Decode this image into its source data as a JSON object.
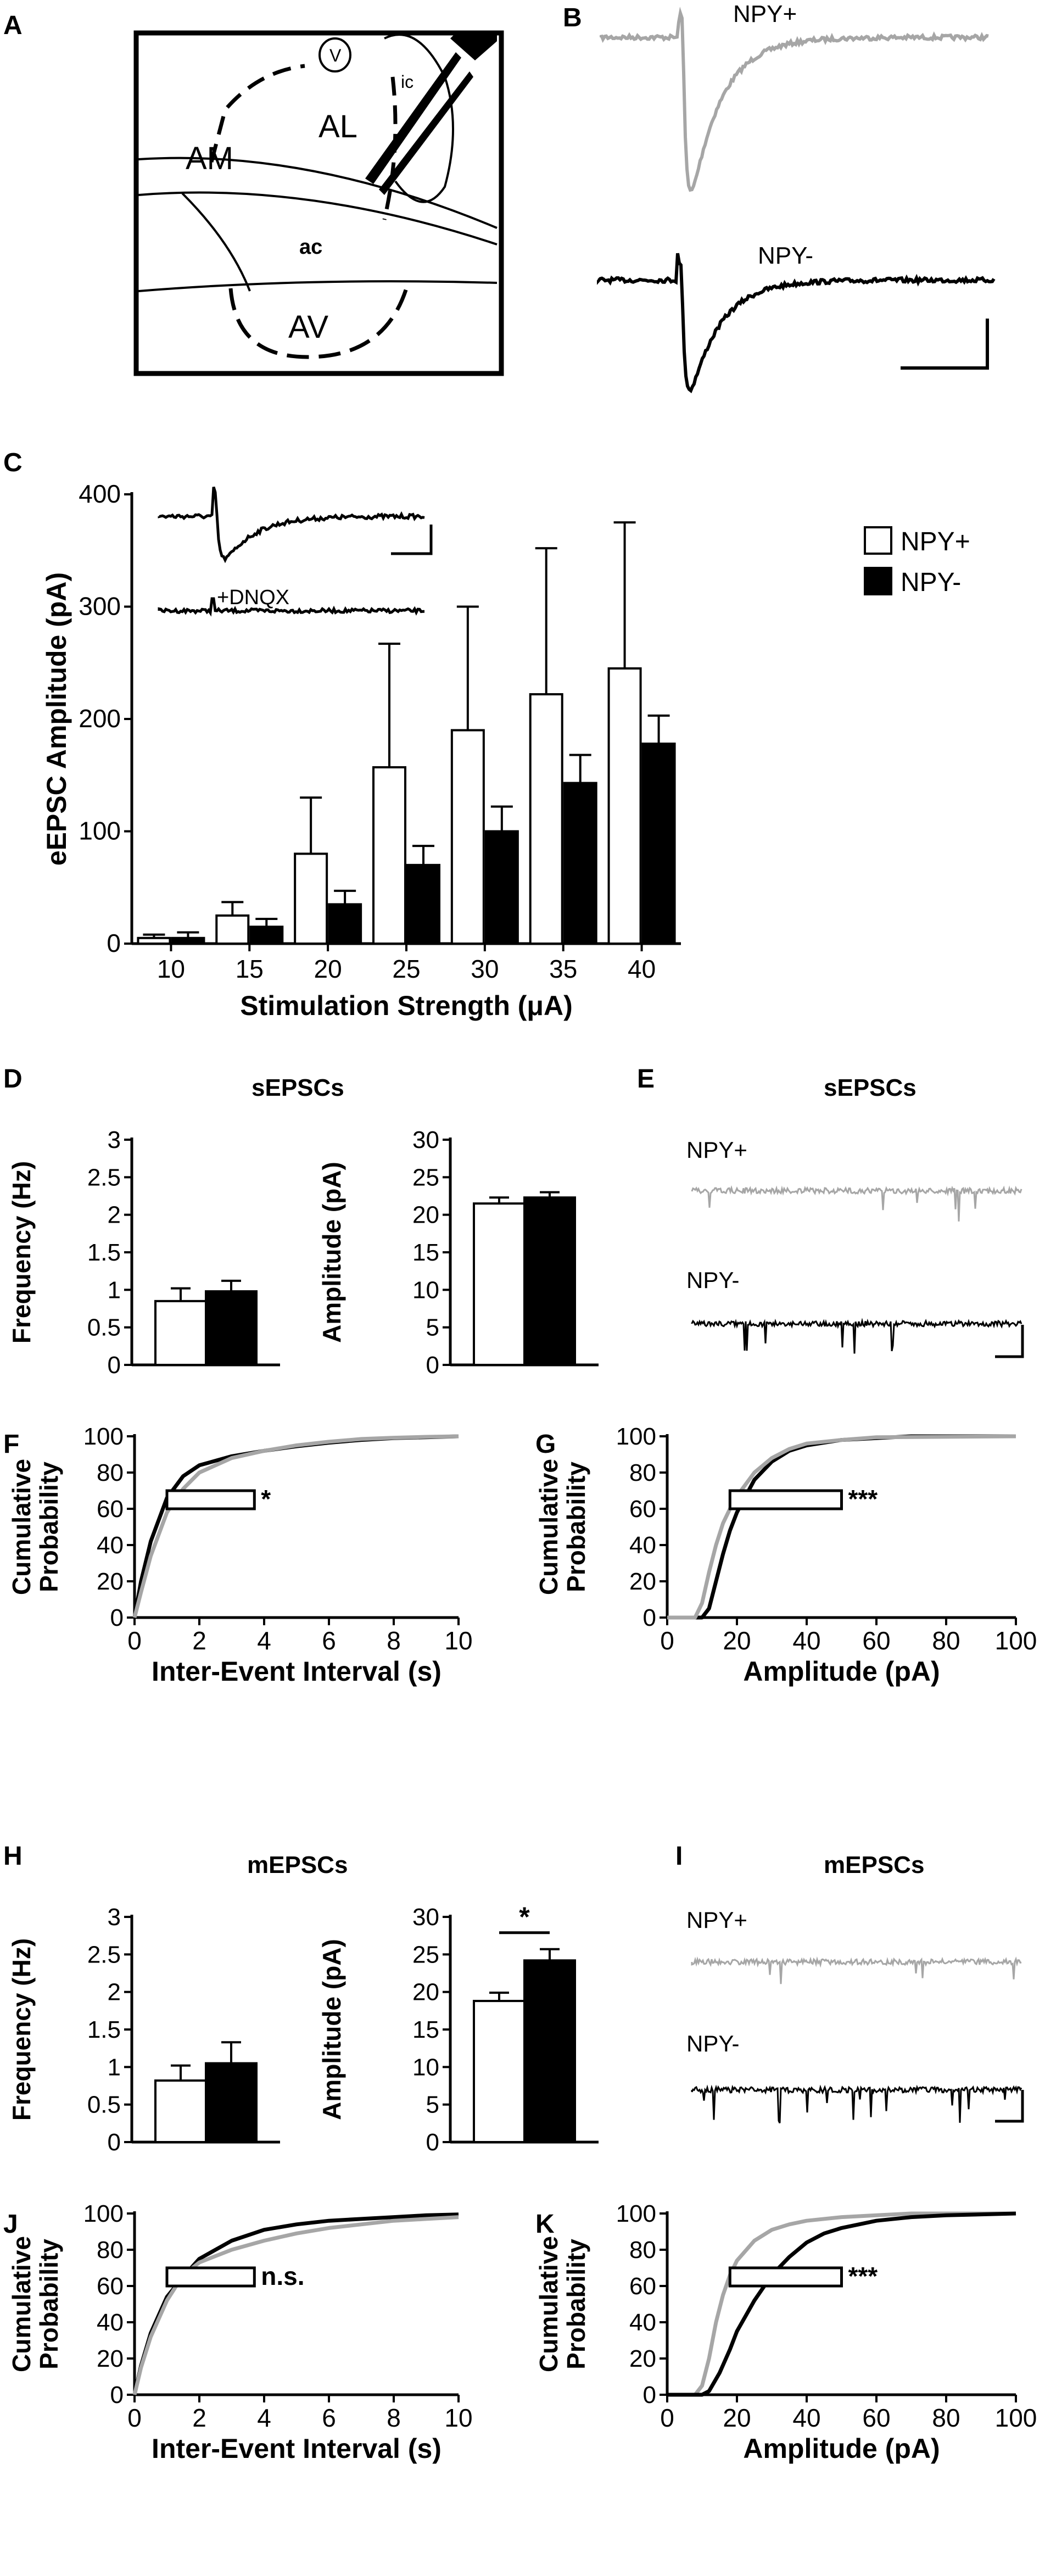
{
  "panels": {
    "A": {
      "letter": "A",
      "regions": [
        "V",
        "ic",
        "AL",
        "AM",
        "ac",
        "AV"
      ]
    },
    "B": {
      "letter": "B",
      "trace_labels": [
        "NPY+",
        "NPY-"
      ]
    },
    "C": {
      "letter": "C",
      "inset_label": "+DNQX"
    },
    "D": {
      "letter": "D",
      "title": "sEPSCs"
    },
    "E": {
      "letter": "E",
      "title": "sEPSCs",
      "trace_labels": [
        "NPY+",
        "NPY-"
      ]
    },
    "F": {
      "letter": "F"
    },
    "G": {
      "letter": "G"
    },
    "H": {
      "letter": "H",
      "title": "mEPSCs"
    },
    "I": {
      "letter": "I",
      "title": "mEPSCs",
      "trace_labels": [
        "NPY+",
        "NPY-"
      ]
    },
    "J": {
      "letter": "J"
    },
    "K": {
      "letter": "K"
    }
  },
  "colors": {
    "npy_plus": "#a6a6a6",
    "npy_minus": "#000000",
    "ink": "#000000"
  },
  "chart_data": [
    {
      "id": "C",
      "type": "bar",
      "ylabel": "eEPSC Amplitude (pA)",
      "xlabel": "Stimulation Strength (μA)",
      "categories": [
        "10",
        "15",
        "20",
        "25",
        "30",
        "35",
        "40"
      ],
      "ylim": [
        0,
        400
      ],
      "yticks": [
        "0",
        "100",
        "200",
        "300",
        "400"
      ],
      "legend_position": "top-right",
      "series": [
        {
          "name": "NPY+",
          "fill": "white",
          "values": [
            5,
            25,
            80,
            157,
            190,
            222,
            245
          ],
          "errors": [
            3,
            12,
            50,
            110,
            110,
            130,
            130
          ]
        },
        {
          "name": "NPY-",
          "fill": "black",
          "values": [
            5,
            15,
            35,
            70,
            100,
            143,
            178
          ],
          "errors": [
            5,
            7,
            12,
            17,
            22,
            25,
            25
          ]
        }
      ]
    },
    {
      "id": "D-frequency",
      "type": "bar",
      "ylabel": "Frequency (Hz)",
      "ylim": [
        0,
        3
      ],
      "yticks": [
        "0",
        "0.5",
        "1",
        "1.5",
        "2",
        "2.5",
        "3"
      ],
      "series": [
        {
          "name": "NPY+",
          "fill": "white",
          "values": [
            0.85
          ],
          "errors": [
            0.17
          ]
        },
        {
          "name": "NPY-",
          "fill": "black",
          "values": [
            0.98
          ],
          "errors": [
            0.14
          ]
        }
      ]
    },
    {
      "id": "D-amplitude",
      "type": "bar",
      "ylabel": "Amplitude (pA)",
      "ylim": [
        0,
        30
      ],
      "yticks": [
        "0",
        "5",
        "10",
        "15",
        "20",
        "25",
        "30"
      ],
      "series": [
        {
          "name": "NPY+",
          "fill": "white",
          "values": [
            21.5
          ],
          "errors": [
            0.8
          ]
        },
        {
          "name": "NPY-",
          "fill": "black",
          "values": [
            22.3
          ],
          "errors": [
            0.7
          ]
        }
      ]
    },
    {
      "id": "F",
      "type": "line",
      "ylabel": "Cumulative Probability",
      "xlabel": "Inter-Event Interval (s)",
      "xlim": [
        0,
        10
      ],
      "ylim": [
        0,
        100
      ],
      "xticks": [
        "0",
        "2",
        "4",
        "6",
        "8",
        "10"
      ],
      "yticks": [
        "0",
        "20",
        "40",
        "60",
        "80",
        "100"
      ],
      "significance": "*",
      "series": [
        {
          "name": "NPY-",
          "x": [
            0,
            0.2,
            0.5,
            1,
            1.5,
            2,
            3,
            4,
            5,
            6,
            7,
            8,
            9,
            10
          ],
          "y": [
            0,
            20,
            42,
            66,
            78,
            84,
            89,
            92,
            94.5,
            96.5,
            98,
            99,
            99.5,
            100
          ]
        },
        {
          "name": "NPY+",
          "x": [
            0,
            0.2,
            0.5,
            1,
            1.5,
            2,
            3,
            4,
            5,
            6,
            7,
            8,
            9,
            10
          ],
          "y": [
            0,
            14,
            34,
            58,
            71,
            80,
            88,
            92,
            95,
            97,
            98.5,
            99.2,
            99.7,
            100
          ]
        }
      ]
    },
    {
      "id": "G",
      "type": "line",
      "ylabel": "Cumulative Probability",
      "xlabel": "Amplitude (pA)",
      "xlim": [
        0,
        100
      ],
      "ylim": [
        0,
        100
      ],
      "xticks": [
        "0",
        "20",
        "40",
        "60",
        "80",
        "100"
      ],
      "yticks": [
        "0",
        "20",
        "40",
        "60",
        "80",
        "100"
      ],
      "significance": "***",
      "series": [
        {
          "name": "NPY-",
          "x": [
            0,
            10,
            12,
            14,
            16,
            18,
            20,
            25,
            30,
            35,
            40,
            50,
            60,
            70,
            100
          ],
          "y": [
            0,
            0,
            5,
            20,
            35,
            48,
            58,
            76,
            86,
            92,
            95,
            98,
            99,
            100,
            100
          ]
        },
        {
          "name": "NPY+",
          "x": [
            0,
            8,
            10,
            12,
            14,
            16,
            18,
            20,
            25,
            30,
            35,
            40,
            50,
            60,
            100
          ],
          "y": [
            0,
            0,
            8,
            25,
            40,
            52,
            60,
            67,
            80,
            88,
            93,
            96,
            98,
            99.5,
            100
          ]
        }
      ]
    },
    {
      "id": "H-frequency",
      "type": "bar",
      "ylabel": "Frequency (Hz)",
      "ylim": [
        0,
        3
      ],
      "yticks": [
        "0",
        "0.5",
        "1",
        "1.5",
        "2",
        "2.5",
        "3"
      ],
      "series": [
        {
          "name": "NPY+",
          "fill": "white",
          "values": [
            0.82
          ],
          "errors": [
            0.2
          ]
        },
        {
          "name": "NPY-",
          "fill": "black",
          "values": [
            1.05
          ],
          "errors": [
            0.28
          ]
        }
      ]
    },
    {
      "id": "H-amplitude",
      "type": "bar",
      "ylabel": "Amplitude (pA)",
      "ylim": [
        0,
        30
      ],
      "yticks": [
        "0",
        "5",
        "10",
        "15",
        "20",
        "25",
        "30"
      ],
      "significance": "*",
      "series": [
        {
          "name": "NPY+",
          "fill": "white",
          "values": [
            18.8
          ],
          "errors": [
            1.1
          ]
        },
        {
          "name": "NPY-",
          "fill": "black",
          "values": [
            24.2
          ],
          "errors": [
            1.5
          ]
        }
      ]
    },
    {
      "id": "J",
      "type": "line",
      "ylabel": "Cumulative Probability",
      "xlabel": "Inter-Event Interval (s)",
      "xlim": [
        0,
        10
      ],
      "ylim": [
        0,
        100
      ],
      "xticks": [
        "0",
        "2",
        "4",
        "6",
        "8",
        "10"
      ],
      "yticks": [
        "0",
        "20",
        "40",
        "60",
        "80",
        "100"
      ],
      "significance": "n.s.",
      "series": [
        {
          "name": "NPY-",
          "x": [
            0,
            0.2,
            0.5,
            1,
            1.5,
            2,
            3,
            4,
            5,
            6,
            7,
            8,
            9,
            10
          ],
          "y": [
            0,
            16,
            34,
            54,
            65,
            75,
            85,
            91,
            94,
            96,
            97,
            98,
            99,
            99.5
          ]
        },
        {
          "name": "NPY+",
          "x": [
            0,
            0.2,
            0.5,
            1,
            1.5,
            2,
            3,
            4,
            5,
            6,
            7,
            8,
            9,
            10
          ],
          "y": [
            0,
            15,
            32,
            52,
            66,
            73,
            80,
            85,
            89,
            92,
            94,
            96,
            97,
            98
          ]
        }
      ]
    },
    {
      "id": "K",
      "type": "line",
      "ylabel": "Cumulative Probability",
      "xlabel": "Amplitude (pA)",
      "xlim": [
        0,
        100
      ],
      "ylim": [
        0,
        100
      ],
      "xticks": [
        "0",
        "20",
        "40",
        "60",
        "80",
        "100"
      ],
      "yticks": [
        "0",
        "20",
        "40",
        "60",
        "80",
        "100"
      ],
      "significance": "***",
      "series": [
        {
          "name": "NPY+",
          "x": [
            0,
            8,
            10,
            12,
            14,
            16,
            18,
            20,
            25,
            30,
            35,
            40,
            50,
            60,
            70,
            100
          ],
          "y": [
            0,
            0,
            5,
            20,
            40,
            55,
            66,
            74,
            85,
            91,
            94,
            96,
            98,
            99,
            100,
            100
          ]
        },
        {
          "name": "NPY-",
          "x": [
            0,
            10,
            12,
            15,
            18,
            20,
            25,
            30,
            35,
            40,
            45,
            50,
            60,
            70,
            80,
            100
          ],
          "y": [
            0,
            0,
            2,
            12,
            25,
            35,
            52,
            66,
            76,
            84,
            89,
            92,
            96,
            98,
            99,
            100
          ]
        }
      ]
    }
  ]
}
